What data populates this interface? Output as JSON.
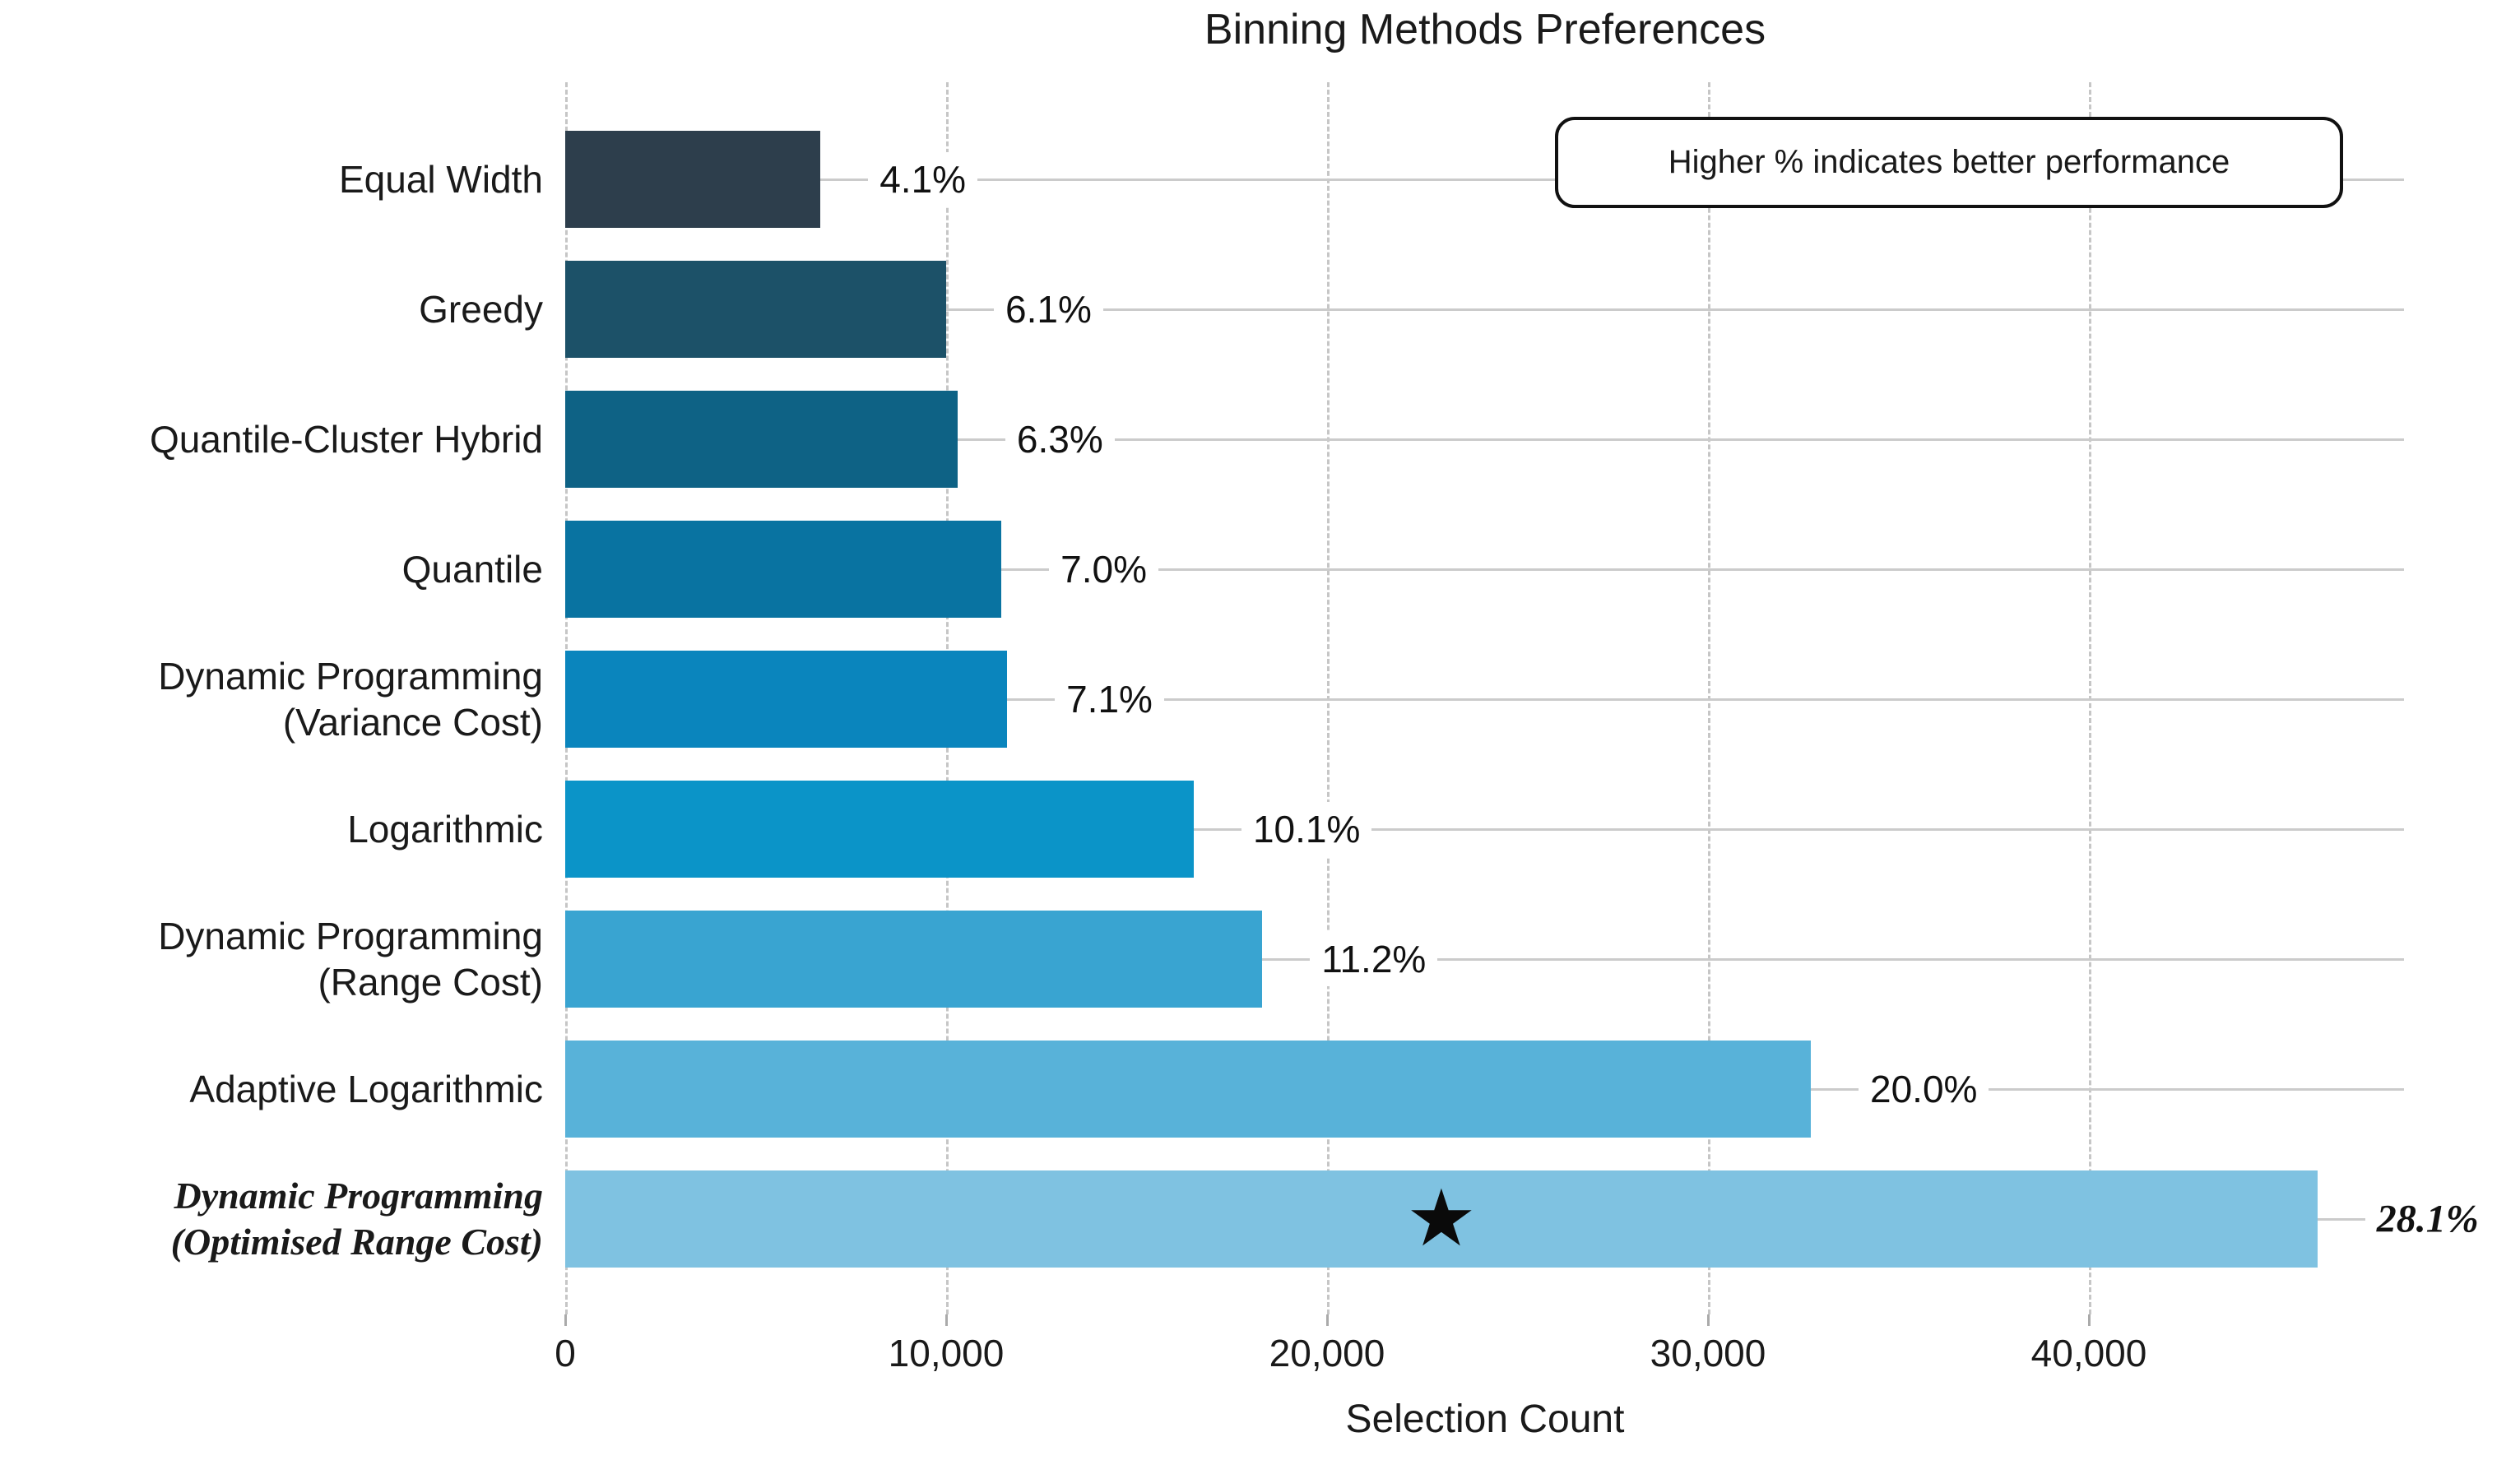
{
  "chart_data": {
    "type": "bar",
    "orientation": "horizontal",
    "title": "Binning Methods Preferences",
    "xlabel": "Selection Count",
    "annotation": "Higher % indicates better performance",
    "xlim": [
      0,
      48300
    ],
    "xticks": [
      0,
      10000,
      20000,
      30000,
      40000
    ],
    "xtick_labels": [
      "0",
      "10,000",
      "20,000",
      "30,000",
      "40,000"
    ],
    "grid": {
      "horizontal": "solid",
      "vertical": "dashed"
    },
    "categories": [
      "Equal Width",
      "Greedy",
      "Quantile-Cluster Hybrid",
      "Quantile",
      "Dynamic Programming\n(Variance Cost)",
      "Logarithmic",
      "Dynamic Programming\n(Range Cost)",
      "Adaptive Logarithmic",
      "Dynamic Programming\n(Optimised Range Cost)"
    ],
    "values": [
      6700,
      10000,
      10300,
      11450,
      11600,
      16500,
      18300,
      32700,
      46000
    ],
    "percent_labels": [
      "4.1%",
      "6.1%",
      "6.3%",
      "7.0%",
      "7.1%",
      "10.1%",
      "11.2%",
      "20.0%",
      "28.1%"
    ],
    "bar_colors": [
      "#2d3e4c",
      "#1c5168",
      "#0e6285",
      "#0973a1",
      "#0a85bd",
      "#0b94c8",
      "#39a4d1",
      "#58b2d9",
      "#7fc2e1"
    ],
    "emphasized_row": 8,
    "star_marker": {
      "row": 8,
      "value": 23000,
      "symbol": "★",
      "color": "#0a0a0a"
    },
    "legend": null
  }
}
